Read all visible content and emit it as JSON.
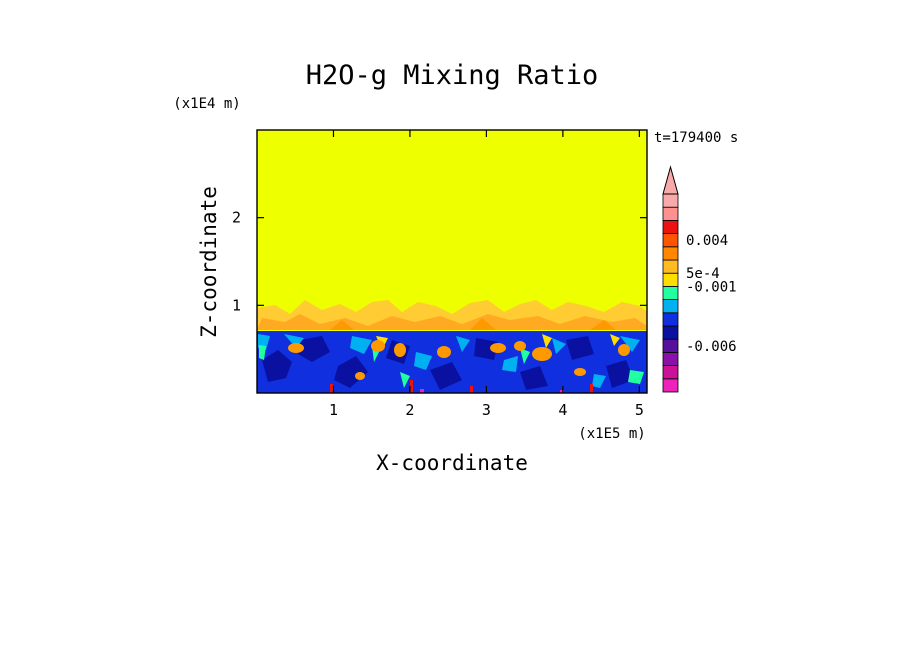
{
  "chart_data": {
    "type": "heatmap",
    "title": "H2O-g Mixing Ratio",
    "xlabel": "X-coordinate",
    "ylabel": "Z-coordinate",
    "x_scale_label": "(x1E5 m)",
    "y_scale_label": "(x1E4 m)",
    "time_label": "t=179400 s",
    "xlim": [
      0,
      5.1
    ],
    "ylim": [
      0,
      3
    ],
    "x_ticks": [
      {
        "value": 1,
        "label": "1"
      },
      {
        "value": 2,
        "label": "2"
      },
      {
        "value": 3,
        "label": "3"
      },
      {
        "value": 4,
        "label": "4"
      },
      {
        "value": 5,
        "label": "5"
      }
    ],
    "y_ticks": [
      {
        "value": 1,
        "label": "1"
      },
      {
        "value": 2,
        "label": "2"
      }
    ],
    "colorbar": {
      "colors": [
        "#ee22bb",
        "#cc1199",
        "#8811aa",
        "#551199",
        "#0a10a0",
        "#1030e0",
        "#00b0f0",
        "#22ffa0",
        "#ffdd00",
        "#ffbb22",
        "#ff8800",
        "#ff5500",
        "#ee1111",
        "#ff9090",
        "#f9a9a9"
      ],
      "labels": [
        {
          "band": 3.5,
          "text": "-0.006"
        },
        {
          "band": 8.0,
          "text": "-0.001"
        },
        {
          "band": 9.0,
          "text": "5e-4"
        },
        {
          "band": 11.5,
          "text": "0.004"
        }
      ],
      "extend_max": true
    },
    "regions": [
      {
        "name": "upper-layer",
        "color": "#eeff00",
        "z_range": [
          1.0,
          3.0
        ]
      },
      {
        "name": "transition-layer",
        "color": "#ffbb22",
        "z_range": [
          0.7,
          1.0
        ]
      },
      {
        "name": "boundary-layer",
        "color": "#1030e0",
        "z_range": [
          0.0,
          0.7
        ]
      }
    ]
  }
}
